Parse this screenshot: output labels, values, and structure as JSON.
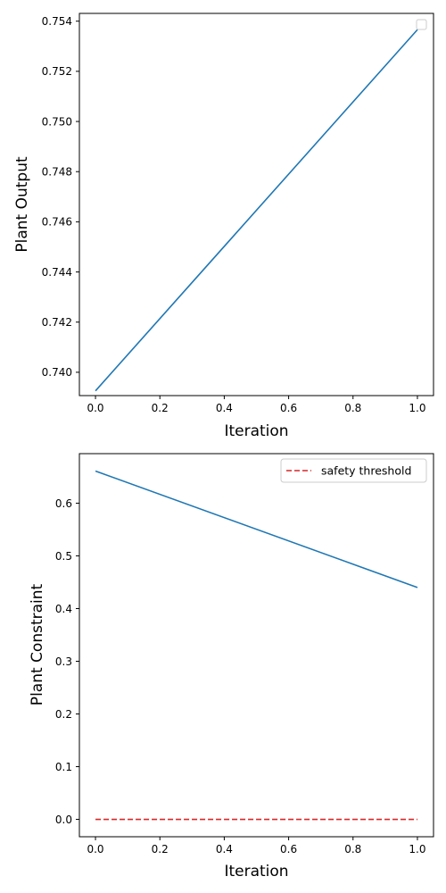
{
  "chart_data": [
    {
      "type": "line",
      "xlabel": "Iteration",
      "ylabel": "Plant Output",
      "xlim": [
        -0.05,
        1.05
      ],
      "ylim": [
        0.73907,
        0.75431
      ],
      "xticks": [
        "0.0",
        "0.2",
        "0.4",
        "0.6",
        "0.8",
        "1.0"
      ],
      "xtick_values": [
        0.0,
        0.2,
        0.4,
        0.6,
        0.8,
        1.0
      ],
      "yticks": [
        "0.740",
        "0.742",
        "0.744",
        "0.746",
        "0.748",
        "0.750",
        "0.752",
        "0.754"
      ],
      "ytick_values": [
        0.74,
        0.742,
        0.744,
        0.746,
        0.748,
        0.75,
        0.752,
        0.754
      ],
      "grid": false,
      "legend": {
        "position": "top-right",
        "entries": []
      },
      "series": [
        {
          "x": [
            0.0,
            1.0
          ],
          "values": [
            0.73926,
            0.75366
          ],
          "color": "#1f77b4",
          "style": "solid"
        }
      ]
    },
    {
      "type": "line",
      "xlabel": "Iteration",
      "ylabel": "Plant Constraint",
      "xlim": [
        -0.05,
        1.05
      ],
      "ylim": [
        -0.033,
        0.694
      ],
      "xticks": [
        "0.0",
        "0.2",
        "0.4",
        "0.6",
        "0.8",
        "1.0"
      ],
      "xtick_values": [
        0.0,
        0.2,
        0.4,
        0.6,
        0.8,
        1.0
      ],
      "yticks": [
        "0.0",
        "0.1",
        "0.2",
        "0.3",
        "0.4",
        "0.5",
        "0.6"
      ],
      "ytick_values": [
        0.0,
        0.1,
        0.2,
        0.3,
        0.4,
        0.5,
        0.6
      ],
      "grid": false,
      "legend": {
        "position": "top-right",
        "entries": [
          "safety threshold"
        ]
      },
      "series": [
        {
          "x": [
            0.0,
            1.0
          ],
          "values": [
            0.661,
            0.44
          ],
          "color": "#1f77b4",
          "style": "solid"
        },
        {
          "name": "safety threshold",
          "x": [
            0.0,
            1.0
          ],
          "values": [
            0.0,
            0.0
          ],
          "color": "#d62728",
          "style": "dashed"
        }
      ]
    }
  ]
}
